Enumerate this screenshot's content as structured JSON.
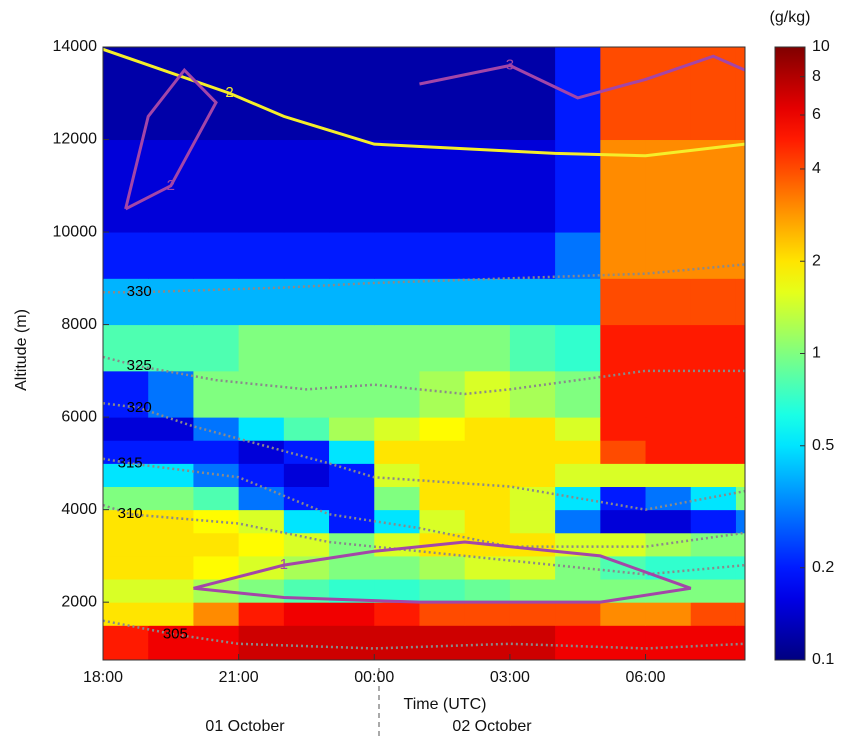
{
  "chart_data": {
    "type": "heatmap",
    "x_label": "Time (UTC)",
    "y_label": "Altitude (m)",
    "date_labels": [
      "01 October",
      "02 October"
    ],
    "colorbar_label": "(g/kg)",
    "colormap": "jet",
    "color_scale": "log",
    "clim": [
      0.1,
      10
    ],
    "cticks": [
      0.1,
      0.2,
      0.5,
      1,
      2,
      4,
      6,
      8,
      10
    ],
    "xlim": [
      18,
      32.2
    ],
    "xticks": [
      {
        "value": 18,
        "label": "18:00"
      },
      {
        "value": 21,
        "label": "21:00"
      },
      {
        "value": 24,
        "label": "00:00"
      },
      {
        "value": 27,
        "label": "03:00"
      },
      {
        "value": 30,
        "label": "06:00"
      }
    ],
    "ylim": [
      750,
      14000
    ],
    "yticks": [
      2000,
      4000,
      6000,
      8000,
      10000,
      12000,
      14000
    ],
    "x_bins": [
      18,
      19,
      20,
      21,
      22,
      23,
      24,
      25,
      26,
      27,
      28,
      29,
      30,
      31,
      32,
      32.2
    ],
    "y_bins": [
      750,
      1500,
      2000,
      2500,
      3000,
      3500,
      4000,
      4500,
      5000,
      5500,
      6000,
      7000,
      8000,
      9000,
      10000,
      12000,
      14000
    ],
    "values": [
      [
        5,
        6,
        6,
        7,
        7,
        7,
        7,
        7,
        7,
        7,
        6,
        6,
        6,
        6,
        6
      ],
      [
        2,
        2,
        3,
        5,
        6,
        6,
        5,
        4,
        4,
        4,
        4,
        3,
        3,
        4,
        4
      ],
      [
        1.5,
        1.5,
        1.2,
        1,
        0.8,
        0.7,
        0.7,
        0.8,
        0.9,
        1,
        1,
        1,
        1,
        1,
        1
      ],
      [
        2,
        2,
        1.8,
        1.5,
        1.2,
        1,
        1,
        1.2,
        1.5,
        1.5,
        1,
        0.8,
        0.7,
        0.7,
        0.7
      ],
      [
        2,
        2,
        2,
        1.8,
        1.5,
        1,
        1.5,
        2,
        2,
        2,
        1.5,
        1.5,
        1.2,
        1,
        1
      ],
      [
        2,
        2,
        1.8,
        1.5,
        0.5,
        0.2,
        0.5,
        1.5,
        2,
        1.5,
        0.3,
        0.15,
        0.15,
        0.2,
        0.3
      ],
      [
        1,
        1,
        0.8,
        0.3,
        0.2,
        0.2,
        1,
        2,
        2,
        1.5,
        0.5,
        0.2,
        0.3,
        0.5,
        1
      ],
      [
        0.5,
        0.5,
        0.3,
        0.2,
        0.15,
        0.2,
        1.5,
        2,
        2,
        2,
        1.5,
        1.5,
        1.5,
        1.5,
        1.5
      ],
      [
        0.2,
        0.2,
        0.2,
        0.15,
        0.2,
        0.5,
        2,
        2,
        2,
        2,
        2,
        4,
        5,
        5,
        5
      ],
      [
        0.15,
        0.15,
        0.3,
        0.5,
        0.8,
        1.2,
        1.5,
        1.8,
        2,
        2,
        1.5,
        5,
        5,
        5,
        5
      ],
      [
        0.2,
        0.3,
        1,
        1,
        1,
        1,
        1,
        1.2,
        1.5,
        1.2,
        1,
        5,
        5,
        5,
        5
      ],
      [
        0.8,
        0.8,
        0.8,
        1,
        1,
        1,
        1,
        1,
        1,
        0.8,
        0.7,
        5,
        5,
        5,
        5
      ],
      [
        0.4,
        0.4,
        0.4,
        0.4,
        0.4,
        0.4,
        0.4,
        0.4,
        0.4,
        0.4,
        0.4,
        4,
        4,
        4,
        4
      ],
      [
        0.2,
        0.2,
        0.2,
        0.2,
        0.2,
        0.2,
        0.2,
        0.2,
        0.2,
        0.2,
        0.3,
        3,
        3,
        3,
        3
      ],
      [
        0.15,
        0.15,
        0.15,
        0.15,
        0.15,
        0.15,
        0.15,
        0.15,
        0.15,
        0.15,
        0.2,
        3,
        3,
        3,
        3
      ],
      [
        0.12,
        0.12,
        0.12,
        0.12,
        0.12,
        0.12,
        0.12,
        0.12,
        0.12,
        0.12,
        0.2,
        4,
        4,
        4,
        4
      ]
    ],
    "contours": [
      {
        "label": "330",
        "color": "#8a8a8a",
        "style": "dotted",
        "x": [
          18,
          18.8,
          22,
          24,
          27,
          30,
          32.2
        ],
        "values": [
          8700,
          8700,
          8800,
          8900,
          9000,
          9100,
          9300
        ]
      },
      {
        "label": "325",
        "color": "#8a8a8a",
        "style": "dotted",
        "x": [
          18,
          18.8,
          20.5,
          22.5,
          24,
          26,
          27,
          30,
          32.2
        ],
        "values": [
          7300,
          7100,
          6800,
          6600,
          6700,
          6500,
          6600,
          7000,
          7000
        ]
      },
      {
        "label": "320",
        "color": "#8a8a8a",
        "style": "dotted",
        "x": [
          18,
          18.8,
          20,
          23,
          24,
          27,
          30,
          32.2
        ],
        "values": [
          6300,
          6200,
          5800,
          5000,
          4700,
          4500,
          4000,
          4400
        ]
      },
      {
        "label": "315",
        "color": "#8a8a8a",
        "style": "dotted",
        "x": [
          18,
          18.6,
          21,
          23,
          25,
          27,
          30,
          32.2
        ],
        "values": [
          5100,
          5000,
          4700,
          3900,
          3600,
          3200,
          3200,
          3500
        ]
      },
      {
        "label": "310",
        "color": "#8a8a8a",
        "style": "dotted",
        "x": [
          18,
          18.6,
          21,
          23,
          25,
          27,
          30,
          32.2
        ],
        "values": [
          4100,
          3900,
          3700,
          3300,
          3100,
          2900,
          2600,
          2800
        ]
      },
      {
        "label": "305",
        "color": "#8a8a8a",
        "style": "dotted",
        "x": [
          18,
          19.6,
          21,
          24,
          27,
          30,
          32.2
        ],
        "values": [
          1600,
          1300,
          1100,
          1000,
          1100,
          1000,
          1100
        ]
      },
      {
        "label": "2",
        "color": "#f5ee2a",
        "style": "solid",
        "x": [
          18,
          20.8,
          22,
          24,
          26,
          28,
          30,
          32.2
        ],
        "values": [
          13950,
          13000,
          12500,
          11900,
          11800,
          11700,
          11650,
          11900
        ]
      },
      {
        "label": "1",
        "color": "#a346a8",
        "style": "solid",
        "x": [
          20,
          22,
          24,
          26,
          29,
          31,
          29,
          25,
          22,
          20
        ],
        "values": [
          2300,
          2800,
          3100,
          3300,
          3000,
          2300,
          2000,
          2000,
          2100,
          2300
        ]
      },
      {
        "label": "2",
        "color": "#a346a8",
        "style": "solid",
        "x": [
          18.5,
          19.5,
          20.5,
          19.8,
          19,
          18.5
        ],
        "values": [
          10500,
          11000,
          12800,
          13500,
          12500,
          10500
        ]
      },
      {
        "label": "3",
        "color": "#a346a8",
        "style": "solid",
        "x": [
          25,
          27,
          28.5,
          30,
          31.5,
          32.2
        ],
        "values": [
          13200,
          13600,
          12900,
          13300,
          13800,
          13500
        ]
      }
    ]
  }
}
